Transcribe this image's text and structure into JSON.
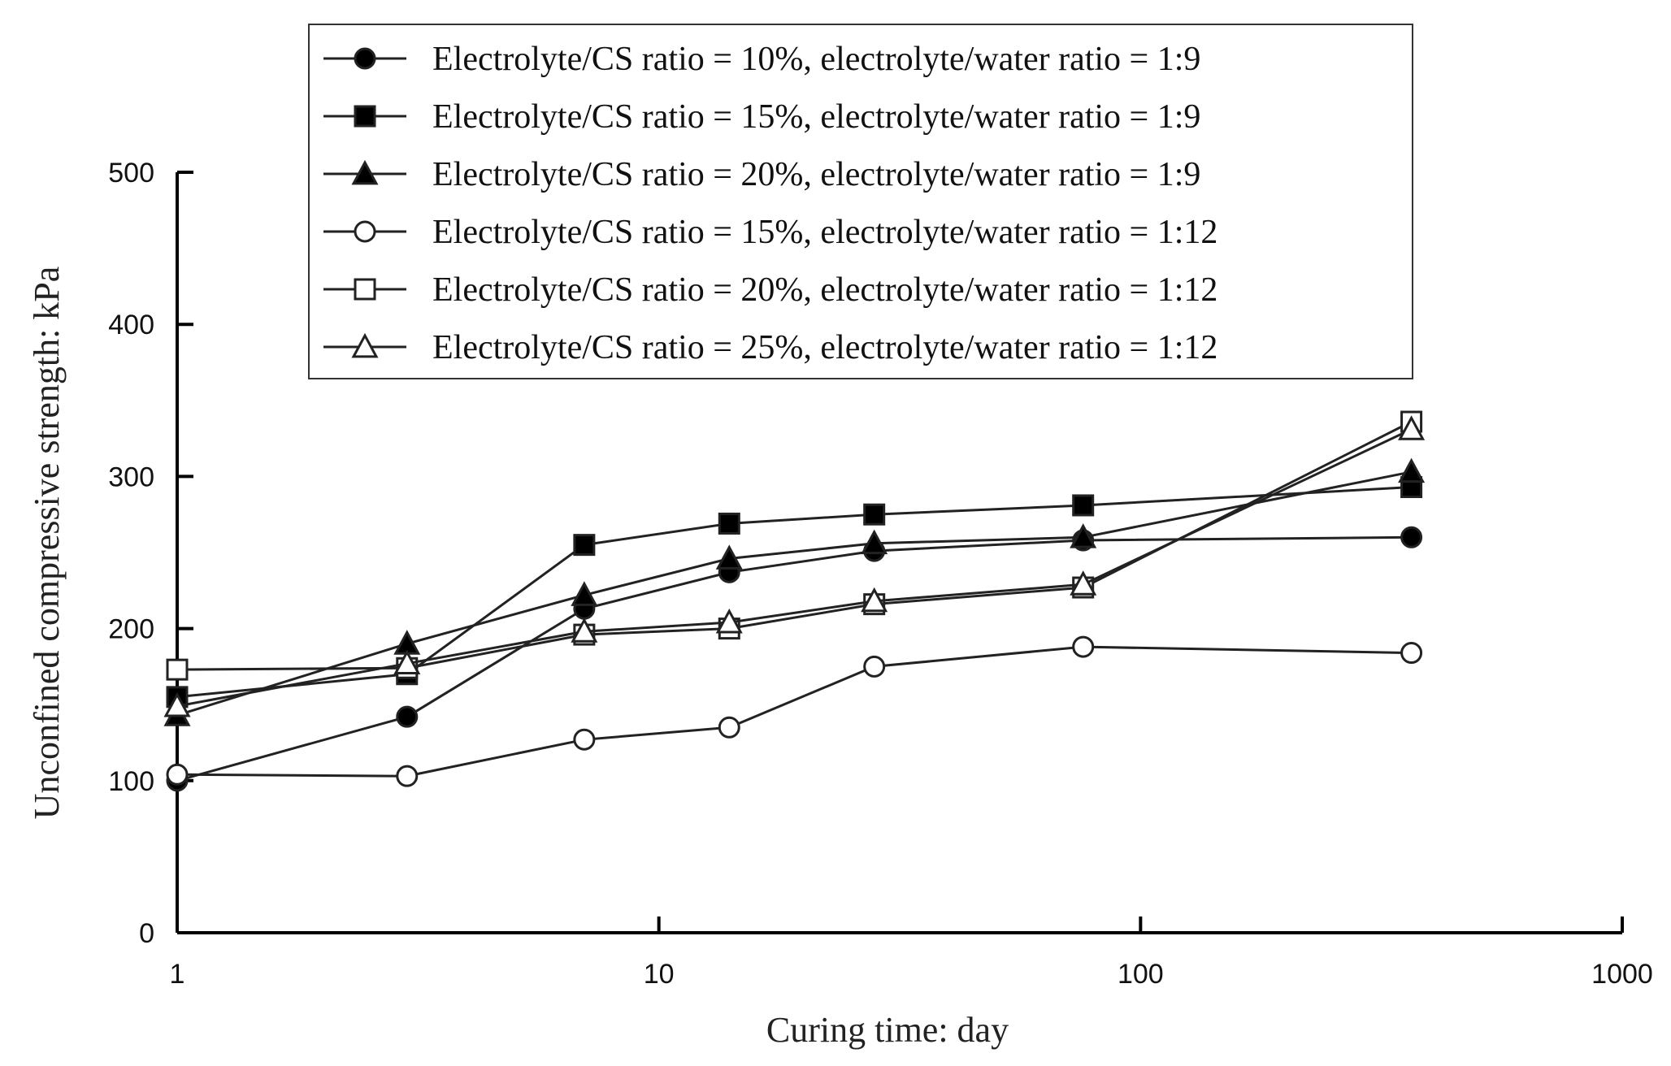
{
  "chart_data": {
    "type": "line",
    "title": "",
    "xlabel": "Curing time: day",
    "ylabel": "Unconfined compressive strength: kPa",
    "xscale": "log",
    "xlim": [
      1,
      1000
    ],
    "ylim": [
      0,
      500
    ],
    "xticks": [
      1,
      10,
      100,
      1000
    ],
    "xtick_labels": [
      "1",
      "10",
      "100",
      "1000"
    ],
    "yticks": [
      0,
      100,
      200,
      300,
      400,
      500
    ],
    "ytick_labels": [
      "0",
      "100",
      "200",
      "300",
      "400",
      "500"
    ],
    "grid": false,
    "legend_position": "top-center",
    "x": [
      1,
      3,
      7,
      14,
      28,
      76,
      365
    ],
    "series": [
      {
        "name": "Electrolyte/CS ratio = 10%, electrolyte/water ratio = 1:9",
        "marker": "circle",
        "filled": true,
        "values": [
          100,
          142,
          213,
          237,
          251,
          258,
          260
        ]
      },
      {
        "name": "Electrolyte/CS ratio = 15%, electrolyte/water ratio = 1:9",
        "marker": "square",
        "filled": true,
        "values": [
          155,
          170,
          255,
          269,
          275,
          281,
          293
        ]
      },
      {
        "name": "Electrolyte/CS ratio = 20%, electrolyte/water ratio = 1:9",
        "marker": "triangle",
        "filled": true,
        "values": [
          143,
          190,
          222,
          246,
          256,
          260,
          303
        ]
      },
      {
        "name": "Electrolyte/CS ratio = 15%, electrolyte/water ratio = 1:12",
        "marker": "circle",
        "filled": false,
        "values": [
          104,
          103,
          127,
          135,
          175,
          188,
          184
        ]
      },
      {
        "name": "Electrolyte/CS ratio = 20%, electrolyte/water ratio = 1:12",
        "marker": "square",
        "filled": false,
        "values": [
          173,
          174,
          196,
          200,
          216,
          227,
          336
        ]
      },
      {
        "name": "Electrolyte/CS ratio = 25%, electrolyte/water ratio = 1:12",
        "marker": "triangle",
        "filled": false,
        "values": [
          149,
          177,
          198,
          204,
          218,
          229,
          331
        ]
      }
    ]
  }
}
